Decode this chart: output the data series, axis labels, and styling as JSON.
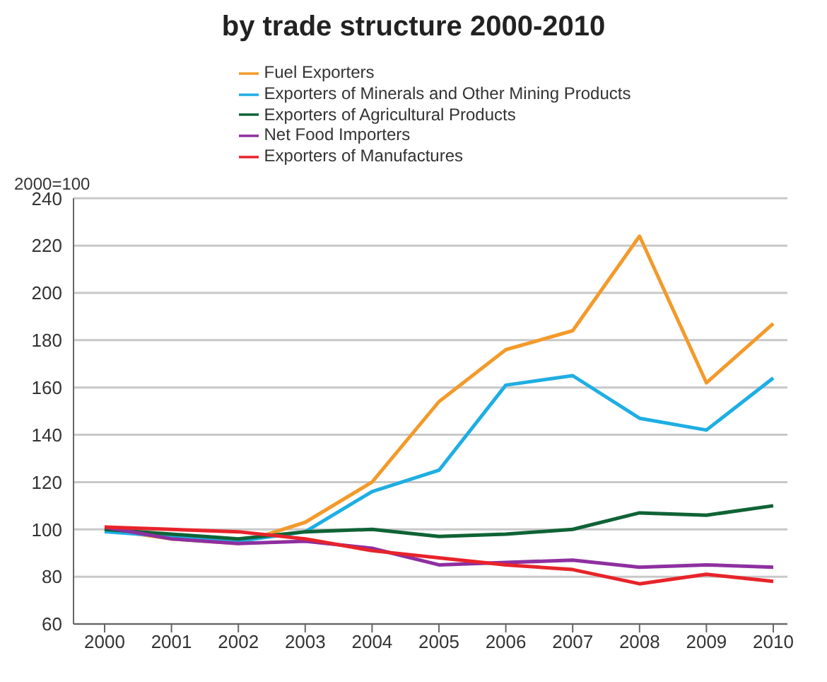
{
  "chart_data": {
    "type": "line",
    "title": "by trade structure 2000-2010",
    "ylabel": "2000=100",
    "categories": [
      "2000",
      "2001",
      "2002",
      "2003",
      "2004",
      "2005",
      "2006",
      "2007",
      "2008",
      "2009",
      "2010"
    ],
    "series": [
      {
        "name": "Fuel Exporters",
        "color": "#f39a2b",
        "values": [
          100,
          96,
          94,
          103,
          120,
          154,
          176,
          184,
          224,
          162,
          187
        ]
      },
      {
        "name": "Exporters of Minerals and Other Mining Products",
        "color": "#1eaee3",
        "values": [
          99,
          97,
          95,
          99,
          116,
          125,
          161,
          165,
          147,
          142,
          164
        ]
      },
      {
        "name": "Exporters of Agricultural Products",
        "color": "#0f6335",
        "values": [
          100,
          98,
          96,
          99,
          100,
          97,
          98,
          100,
          107,
          106,
          110
        ]
      },
      {
        "name": "Net Food Importers",
        "color": "#8e2fa0",
        "values": [
          101,
          96,
          94,
          95,
          92,
          85,
          86,
          87,
          84,
          85,
          84
        ]
      },
      {
        "name": "Exporters of Manufactures",
        "color": "#e8232a",
        "values": [
          101,
          100,
          99,
          96,
          91,
          88,
          85,
          83,
          77,
          81,
          78
        ]
      }
    ],
    "ylim": [
      60,
      240
    ],
    "yticks": [
      60,
      80,
      100,
      120,
      140,
      160,
      180,
      200,
      220,
      240
    ],
    "grid": "y",
    "legend": "top",
    "marker": "none",
    "line_style": "solid"
  }
}
